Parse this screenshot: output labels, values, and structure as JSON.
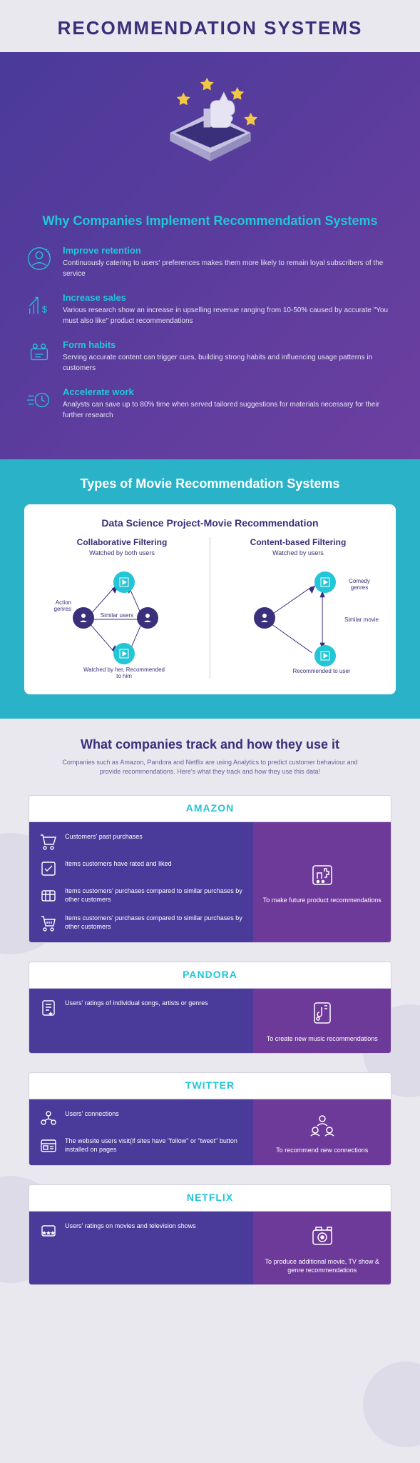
{
  "colors": {
    "purple_dark": "#3a2f7a",
    "purple_grad_a": "#4a3a9a",
    "purple_grad_b": "#6c3fa0",
    "cyan": "#22c6d6",
    "teal_bg": "#2ab3c8",
    "page_bg": "#eae8ef",
    "card_border": "#d4d0e3",
    "right_purple": "#6e3a9a"
  },
  "header": {
    "title": "RECOMMENDATION SYSTEMS"
  },
  "hero": {
    "why_title": "Why Companies Implement Recommendation Systems",
    "benefits": [
      {
        "title": "Improve retention",
        "desc": "Continuously catering to users' preferences makes them more likely to remain loyal subscribers of the service"
      },
      {
        "title": "Increase sales",
        "desc": "Various research show an increase in upselling revenue ranging from 10-50% caused by accurate \"You must also like\" product recommendations"
      },
      {
        "title": "Form habits",
        "desc": "Serving accurate content can trigger cues, building strong habits and influencing usage patterns in customers"
      },
      {
        "title": "Accelerate work",
        "desc": "Analysts can save up to 80% time when served tailored suggestions for materials necessary for their further research"
      }
    ]
  },
  "types": {
    "title": "Types of Movie Recommendation Systems",
    "card_title": "Data Science Project-Movie Recommendation",
    "left": {
      "name": "Collaborative Filtering",
      "sub": "Watched by both users",
      "labels": {
        "action": "Action genres",
        "similar": "Similar users",
        "bottom": "Watched by her, Recommended to him"
      }
    },
    "right": {
      "name": "Content-based Filtering",
      "sub": "Watched by users",
      "labels": {
        "comedy": "Comedy genres",
        "similar": "Similar movie",
        "bottom": "Recommended to user"
      }
    }
  },
  "tracking": {
    "title": "What companies track and how they use it",
    "sub": "Companies such as Amazon, Pandora and Netflix are using Analytics to predict customer behaviour and provide recommendations. Here's what they track and how they use this data!",
    "companies": [
      {
        "name": "AMAZON",
        "tracks": [
          "Customers' past purchases",
          "Items customers have rated and liked",
          "Items customers' purchases compared to similar purchases by other customers",
          "Items customers' purchases compared to similar purchases by other customers"
        ],
        "use": "To make future product recommendations"
      },
      {
        "name": "PANDORA",
        "tracks": [
          "Users' ratings of individual songs, artists or genres"
        ],
        "use": "To create new music recommendations"
      },
      {
        "name": "TWITTER",
        "tracks": [
          "Users' connections",
          "The website users visit(if sites have \"follow\" or \"tweet\" button installed on pages"
        ],
        "use": "To recommend new connections"
      },
      {
        "name": "NETFLIX",
        "tracks": [
          "Users' ratings on movies and television shows"
        ],
        "use": "To produce additional movie, TV show & genre recommendations"
      }
    ]
  }
}
